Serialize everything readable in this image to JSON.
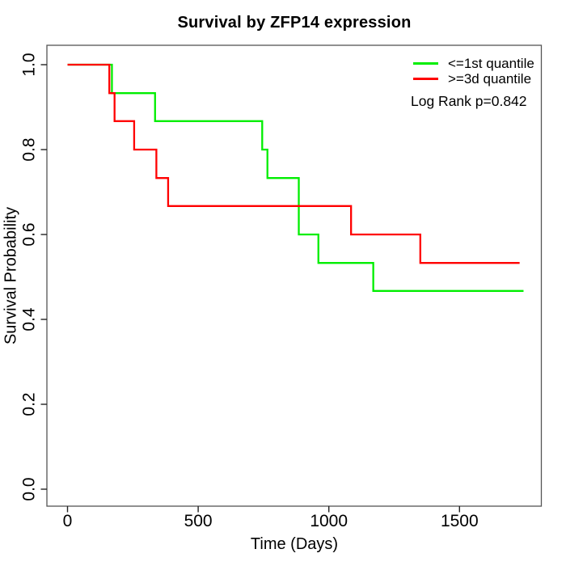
{
  "page": {
    "background": "#ffffff"
  },
  "chart_data": {
    "type": "line",
    "variant": "kaplan_meier_step",
    "title": "Survival by ZFP14 expression",
    "xlabel": "Time (Days)",
    "ylabel": "Survival Probability",
    "x_ticks": [
      0,
      500,
      1000,
      1500
    ],
    "y_ticks": [
      0.0,
      0.2,
      0.4,
      0.6,
      0.8,
      1.0
    ],
    "xlim": [
      0,
      1750
    ],
    "ylim": [
      0.0,
      1.0
    ],
    "grid": false,
    "legend_position": "top-right",
    "annotation": "Log Rank p=0.842",
    "axis_color": "#555555",
    "tick_color": "#222222",
    "series": [
      {
        "name": "<=1st quantile",
        "color": "#00EE00",
        "start": [
          0,
          1.0
        ],
        "steps": [
          [
            170,
            0.933
          ],
          [
            335,
            0.867
          ],
          [
            745,
            0.8
          ],
          [
            765,
            0.733
          ],
          [
            885,
            0.6
          ],
          [
            960,
            0.533
          ],
          [
            1170,
            0.467
          ]
        ],
        "end_time": 1745
      },
      {
        "name": ">=3d quantile",
        "color": "#FF0000",
        "start": [
          0,
          1.0
        ],
        "steps": [
          [
            160,
            0.933
          ],
          [
            180,
            0.867
          ],
          [
            255,
            0.8
          ],
          [
            340,
            0.733
          ],
          [
            385,
            0.667
          ],
          [
            1085,
            0.6
          ],
          [
            1350,
            0.533
          ]
        ],
        "end_time": 1730
      }
    ]
  }
}
